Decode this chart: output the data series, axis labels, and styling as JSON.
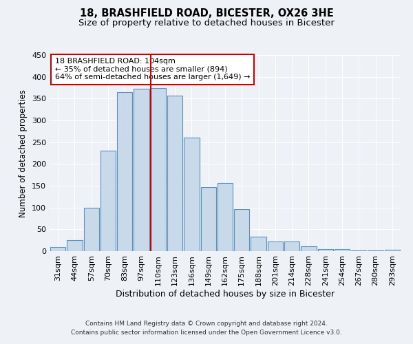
{
  "title1": "18, BRASHFIELD ROAD, BICESTER, OX26 3HE",
  "title2": "Size of property relative to detached houses in Bicester",
  "xlabel": "Distribution of detached houses by size in Bicester",
  "ylabel": "Number of detached properties",
  "categories": [
    "31sqm",
    "44sqm",
    "57sqm",
    "70sqm",
    "83sqm",
    "97sqm",
    "110sqm",
    "123sqm",
    "136sqm",
    "149sqm",
    "162sqm",
    "175sqm",
    "188sqm",
    "201sqm",
    "214sqm",
    "228sqm",
    "241sqm",
    "254sqm",
    "267sqm",
    "280sqm",
    "293sqm"
  ],
  "values": [
    10,
    25,
    100,
    230,
    365,
    372,
    375,
    357,
    260,
    147,
    156,
    96,
    33,
    22,
    22,
    11,
    5,
    4,
    2,
    1,
    3
  ],
  "bar_color": "#c8daea",
  "bar_edge_color": "#5a8fc0",
  "vline_x": 5.55,
  "vline_color": "#cc0000",
  "annotation_text": "18 BRASHFIELD ROAD: 104sqm\n← 35% of detached houses are smaller (894)\n64% of semi-detached houses are larger (1,649) →",
  "annotation_box_color": "#ffffff",
  "annotation_box_edge_color": "#cc0000",
  "ylim": [
    0,
    450
  ],
  "yticks": [
    0,
    50,
    100,
    150,
    200,
    250,
    300,
    350,
    400,
    450
  ],
  "footer1": "Contains HM Land Registry data © Crown copyright and database right 2024.",
  "footer2": "Contains public sector information licensed under the Open Government Licence v3.0.",
  "bg_color": "#eef2f7",
  "grid_color": "#ffffff",
  "title1_fontsize": 10.5,
  "title2_fontsize": 9.5,
  "xlabel_fontsize": 9,
  "ylabel_fontsize": 8.5,
  "tick_fontsize": 8,
  "annot_fontsize": 8,
  "footer_fontsize": 6.5
}
